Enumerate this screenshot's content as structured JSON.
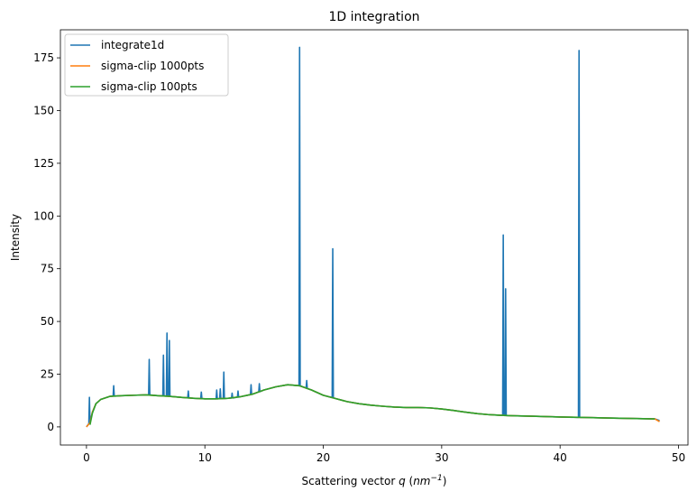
{
  "chart_data": {
    "type": "line",
    "title": "1D integration",
    "xlabel": [
      "Scattering vector ",
      "q",
      " (",
      "nm",
      "−1",
      ")"
    ],
    "ylabel": "Intensity",
    "xlim": [
      -2.2,
      50.8
    ],
    "ylim": [
      -8.6,
      188.3
    ],
    "xticks": [
      0,
      10,
      20,
      30,
      40,
      50
    ],
    "yticks": [
      0,
      25,
      50,
      75,
      100,
      125,
      150,
      175
    ],
    "legend": "upper left",
    "series": [
      {
        "name": "integrate1d",
        "color": "#1f77b4",
        "x": [
          0,
          0.2,
          0.25,
          0.3,
          0.5,
          0.8,
          1.2,
          2,
          2.25,
          2.3,
          2.35,
          3,
          4,
          5,
          5.25,
          5.3,
          5.35,
          6,
          6.45,
          6.5,
          6.55,
          6.75,
          6.8,
          6.85,
          6.95,
          7.0,
          7.05,
          8,
          8.55,
          8.6,
          8.65,
          9,
          9.65,
          9.7,
          9.75,
          10,
          10.95,
          11.0,
          11.05,
          11.25,
          11.3,
          11.35,
          11.55,
          11.6,
          11.65,
          12,
          12.25,
          12.3,
          12.35,
          12.75,
          12.8,
          12.85,
          13,
          13.85,
          13.9,
          13.95,
          14,
          14.55,
          14.6,
          14.65,
          15,
          16,
          17,
          17.95,
          18.0,
          18.05,
          18.55,
          18.6,
          18.65,
          19,
          20,
          20.75,
          20.8,
          20.85,
          21,
          22,
          23,
          24,
          25,
          26,
          27,
          28,
          29,
          30,
          31,
          32,
          33,
          34,
          35,
          35.15,
          35.2,
          35.25,
          35.35,
          35.4,
          35.45,
          36,
          38,
          40,
          41.55,
          41.6,
          41.65,
          42,
          44,
          46,
          48,
          48.4
        ],
        "values": [
          0,
          1.5,
          14,
          2,
          7,
          11,
          13,
          14.5,
          14.6,
          19.5,
          14.6,
          14.8,
          15,
          15.2,
          15.2,
          32,
          15.2,
          14.8,
          14.7,
          34,
          14.7,
          14.6,
          44.5,
          14.6,
          14.5,
          41,
          14.5,
          14,
          13.8,
          17,
          13.8,
          13.6,
          13.4,
          16.5,
          13.4,
          13.3,
          13.3,
          17.5,
          13.3,
          13.4,
          18,
          13.4,
          13.4,
          26,
          13.4,
          13.6,
          13.7,
          16,
          13.7,
          14.1,
          17,
          14.1,
          14.3,
          15.3,
          20,
          15.4,
          15.5,
          16.6,
          20.5,
          16.7,
          17.5,
          19,
          20,
          19.5,
          180,
          19.5,
          18.4,
          22,
          18.2,
          17.5,
          15,
          13.9,
          84.5,
          13.8,
          13.5,
          12,
          11,
          10.3,
          9.8,
          9.4,
          9.2,
          9.2,
          9,
          8.5,
          7.8,
          7,
          6.3,
          5.8,
          5.5,
          5.5,
          91,
          5.5,
          5.4,
          65.5,
          5.4,
          5.3,
          5,
          4.7,
          4.5,
          178.5,
          4.5,
          4.5,
          4.2,
          4,
          3.8,
          3
        ]
      },
      {
        "name": "sigma-clip 1000pts",
        "color": "#ff7f0e",
        "x": [
          0,
          0.3,
          0.5,
          0.8,
          1.2,
          2,
          3,
          4,
          5,
          6,
          7,
          8,
          9,
          10,
          11,
          12,
          13,
          14,
          15,
          16,
          17,
          18,
          19,
          20,
          21,
          22,
          23,
          24,
          25,
          26,
          27,
          28,
          29,
          30,
          31,
          32,
          33,
          34,
          35,
          36,
          38,
          40,
          42,
          44,
          46,
          48,
          48.4
        ],
        "values": [
          0,
          2,
          7,
          11,
          13,
          14.5,
          14.8,
          15,
          15.2,
          14.8,
          14.5,
          14,
          13.6,
          13.3,
          13.3,
          13.6,
          14.3,
          15.5,
          17.5,
          19,
          20,
          19.5,
          17.5,
          15,
          13.5,
          12,
          11,
          10.3,
          9.8,
          9.4,
          9.2,
          9.2,
          9,
          8.5,
          7.8,
          7,
          6.3,
          5.8,
          5.5,
          5.3,
          5,
          4.7,
          4.5,
          4.2,
          4,
          3.8,
          2.5
        ]
      },
      {
        "name": "sigma-clip 100pts",
        "color": "#2ca02c",
        "x": [
          0.3,
          0.5,
          0.8,
          1.2,
          2,
          3,
          4,
          5,
          6,
          7,
          8,
          9,
          10,
          11,
          12,
          13,
          14,
          15,
          16,
          17,
          18,
          19,
          20,
          21,
          22,
          23,
          24,
          25,
          26,
          27,
          28,
          29,
          30,
          31,
          32,
          33,
          34,
          35,
          36,
          38,
          40,
          42,
          44,
          46,
          48
        ],
        "values": [
          1,
          6.5,
          11,
          13,
          14.5,
          14.8,
          15,
          15.2,
          14.8,
          14.5,
          14,
          13.6,
          13.3,
          13.3,
          13.6,
          14.3,
          15.5,
          17.5,
          19,
          20,
          19.5,
          17.5,
          15,
          13.5,
          12,
          11,
          10.3,
          9.8,
          9.4,
          9.2,
          9.2,
          9,
          8.5,
          7.8,
          7,
          6.3,
          5.8,
          5.5,
          5.3,
          5,
          4.7,
          4.5,
          4.2,
          4,
          3.8
        ]
      }
    ]
  }
}
